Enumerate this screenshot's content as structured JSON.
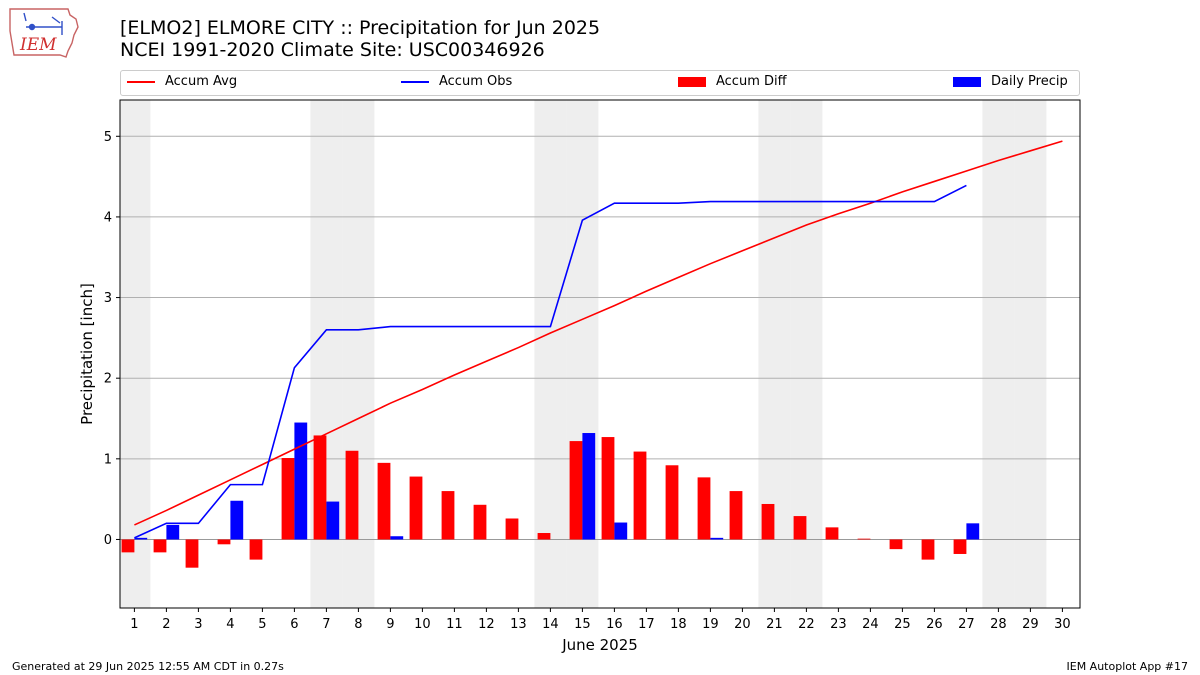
{
  "header": {
    "title": "[ELMO2] ELMORE CITY :: Precipitation for Jun 2025",
    "subtitle": "NCEI 1991-2020 Climate Site: USC00346926",
    "logo_text": "IEM"
  },
  "legend": {
    "accum_avg": "Accum Avg",
    "accum_obs": "Accum Obs",
    "accum_diff": "Accum Diff",
    "daily_precip": "Daily Precip"
  },
  "footer": {
    "left": "Generated at 29 Jun 2025 12:55 AM CDT in 0.27s",
    "right": "IEM Autoplot App #17"
  },
  "colors": {
    "avg": "#ff0000",
    "obs": "#0000ff",
    "diff": "#ff0000",
    "daily": "#0000ff",
    "weekend_band": "#eeeeee",
    "grid": "#b0b0b0"
  },
  "chart_data": {
    "type": "bar",
    "xlabel": "June 2025",
    "ylabel": "Precipitation [inch]",
    "ylim": [
      -0.85,
      5.45
    ],
    "yticks": [
      0,
      1,
      2,
      3,
      4,
      5
    ],
    "grid": "horizontal",
    "legend_position": "top",
    "weekend_days": [
      1,
      7,
      8,
      14,
      15,
      21,
      22,
      28,
      29
    ],
    "x": [
      1,
      2,
      3,
      4,
      5,
      6,
      7,
      8,
      9,
      10,
      11,
      12,
      13,
      14,
      15,
      16,
      17,
      18,
      19,
      20,
      21,
      22,
      23,
      24,
      25,
      26,
      27,
      28,
      29,
      30
    ],
    "series": [
      {
        "name": "Accum Avg",
        "kind": "line",
        "x": [
          1,
          2,
          3,
          4,
          5,
          6,
          7,
          8,
          9,
          10,
          11,
          12,
          13,
          14,
          15,
          16,
          17,
          18,
          19,
          20,
          21,
          22,
          23,
          24,
          25,
          26,
          27,
          28,
          29,
          30
        ],
        "values": [
          0.18,
          0.36,
          0.55,
          0.74,
          0.93,
          1.12,
          1.31,
          1.5,
          1.69,
          1.86,
          2.04,
          2.21,
          2.38,
          2.56,
          2.73,
          2.9,
          3.08,
          3.25,
          3.42,
          3.58,
          3.74,
          3.9,
          4.04,
          4.17,
          4.31,
          4.44,
          4.57,
          4.7,
          4.82,
          4.94
        ]
      },
      {
        "name": "Accum Obs",
        "kind": "line",
        "x": [
          1,
          2,
          3,
          4,
          5,
          6,
          7,
          8,
          9,
          10,
          11,
          12,
          13,
          14,
          15,
          16,
          17,
          18,
          19,
          20,
          21,
          22,
          23,
          24,
          25,
          26,
          27
        ],
        "values": [
          0.02,
          0.2,
          0.2,
          0.68,
          0.68,
          2.13,
          2.6,
          2.6,
          2.64,
          2.64,
          2.64,
          2.64,
          2.64,
          2.64,
          3.96,
          4.17,
          4.17,
          4.17,
          4.19,
          4.19,
          4.19,
          4.19,
          4.19,
          4.19,
          4.19,
          4.19,
          4.39
        ]
      },
      {
        "name": "Accum Diff",
        "kind": "bar",
        "x": [
          1,
          2,
          3,
          4,
          5,
          6,
          7,
          8,
          9,
          10,
          11,
          12,
          13,
          14,
          15,
          16,
          17,
          18,
          19,
          20,
          21,
          22,
          23,
          24,
          25,
          26,
          27
        ],
        "values": [
          -0.16,
          -0.16,
          -0.35,
          -0.06,
          -0.25,
          1.01,
          1.29,
          1.1,
          0.95,
          0.78,
          0.6,
          0.43,
          0.26,
          0.08,
          1.22,
          1.27,
          1.09,
          0.92,
          0.77,
          0.6,
          0.44,
          0.29,
          0.15,
          0.01,
          -0.12,
          -0.25,
          -0.18
        ]
      },
      {
        "name": "Daily Precip",
        "kind": "bar",
        "x": [
          1,
          2,
          3,
          4,
          5,
          6,
          7,
          8,
          9,
          10,
          11,
          12,
          13,
          14,
          15,
          16,
          17,
          18,
          19,
          20,
          21,
          22,
          23,
          24,
          25,
          26,
          27
        ],
        "values": [
          0.02,
          0.18,
          0,
          0.48,
          0,
          1.45,
          0.47,
          0,
          0.04,
          0,
          0,
          0,
          0,
          0,
          1.32,
          0.21,
          0,
          0,
          0.02,
          0,
          0,
          0,
          0,
          0,
          0,
          0,
          0.2
        ]
      }
    ]
  }
}
